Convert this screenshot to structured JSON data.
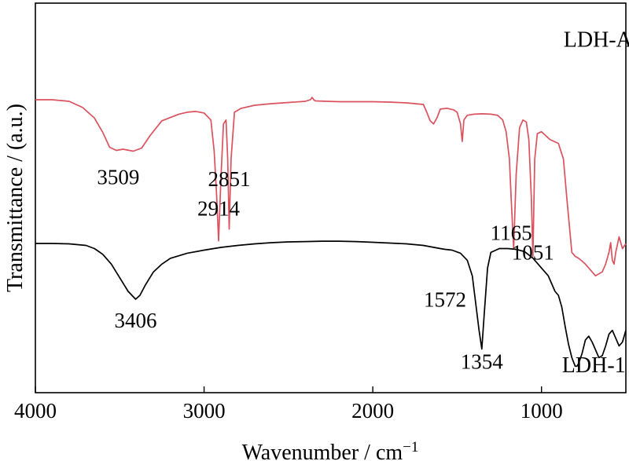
{
  "chart_data": {
    "type": "line",
    "xlabel": "Wavenumber / cm",
    "xlabel_superscript": "−1",
    "ylabel": "Transmittance / (a.u.)",
    "x_reversed": true,
    "xlim": [
      4000,
      500
    ],
    "ylim": [
      0,
      1
    ],
    "x_ticks": [
      {
        "value": 4000,
        "label": "4000"
      },
      {
        "value": 3000,
        "label": "3000"
      },
      {
        "value": 2000,
        "label": "2000"
      },
      {
        "value": 1000,
        "label": "1000"
      }
    ],
    "series": [
      {
        "name": "LDH-AS",
        "color": "#d9525e",
        "x": [
          4000,
          3900,
          3800,
          3720,
          3650,
          3600,
          3560,
          3520,
          3480,
          3420,
          3370,
          3320,
          3250,
          3150,
          3100,
          3050,
          3000,
          2960,
          2940,
          2925,
          2914,
          2900,
          2885,
          2870,
          2860,
          2851,
          2840,
          2820,
          2780,
          2700,
          2600,
          2500,
          2400,
          2370,
          2360,
          2350,
          2340,
          2200,
          2000,
          1900,
          1800,
          1700,
          1680,
          1660,
          1640,
          1620,
          1600,
          1560,
          1520,
          1500,
          1480,
          1470,
          1460,
          1440,
          1400,
          1350,
          1300,
          1260,
          1230,
          1210,
          1190,
          1180,
          1165,
          1150,
          1130,
          1110,
          1090,
          1075,
          1060,
          1051,
          1040,
          1025,
          1000,
          950,
          900,
          870,
          850,
          820,
          800,
          780,
          760,
          740,
          700,
          680,
          660,
          640,
          620,
          600,
          590,
          580,
          570,
          560,
          540,
          520,
          500
        ],
        "y": [
          0.752,
          0.752,
          0.748,
          0.732,
          0.705,
          0.668,
          0.63,
          0.622,
          0.625,
          0.62,
          0.628,
          0.66,
          0.698,
          0.715,
          0.72,
          0.722,
          0.718,
          0.7,
          0.62,
          0.5,
          0.39,
          0.55,
          0.69,
          0.7,
          0.6,
          0.42,
          0.6,
          0.72,
          0.73,
          0.738,
          0.742,
          0.745,
          0.748,
          0.752,
          0.758,
          0.752,
          0.749,
          0.747,
          0.747,
          0.746,
          0.744,
          0.74,
          0.72,
          0.698,
          0.69,
          0.705,
          0.728,
          0.73,
          0.726,
          0.72,
          0.69,
          0.645,
          0.7,
          0.712,
          0.715,
          0.716,
          0.715,
          0.712,
          0.7,
          0.67,
          0.6,
          0.5,
          0.37,
          0.56,
          0.68,
          0.7,
          0.695,
          0.65,
          0.5,
          0.35,
          0.6,
          0.665,
          0.67,
          0.65,
          0.64,
          0.6,
          0.5,
          0.36,
          0.35,
          0.345,
          0.338,
          0.33,
          0.31,
          0.3,
          0.305,
          0.31,
          0.33,
          0.36,
          0.385,
          0.34,
          0.33,
          0.36,
          0.4,
          0.37,
          0.382
        ]
      },
      {
        "name": "LDH-1",
        "color": "#000000",
        "x": [
          4000,
          3900,
          3800,
          3700,
          3650,
          3600,
          3550,
          3500,
          3450,
          3406,
          3380,
          3350,
          3300,
          3250,
          3200,
          3100,
          3000,
          2900,
          2800,
          2700,
          2600,
          2500,
          2400,
          2300,
          2200,
          2100,
          2000,
          1900,
          1800,
          1700,
          1650,
          1600,
          1572,
          1530,
          1480,
          1440,
          1410,
          1390,
          1370,
          1354,
          1340,
          1320,
          1300,
          1250,
          1200,
          1150,
          1100,
          1050,
          1000,
          960,
          940,
          920,
          900,
          880,
          860,
          840,
          820,
          800,
          790,
          780,
          760,
          740,
          720,
          700,
          680,
          660,
          640,
          620,
          600,
          580,
          560,
          540,
          520,
          500
        ],
        "y": [
          0.383,
          0.383,
          0.382,
          0.378,
          0.37,
          0.355,
          0.33,
          0.295,
          0.26,
          0.24,
          0.25,
          0.275,
          0.31,
          0.33,
          0.345,
          0.358,
          0.366,
          0.373,
          0.378,
          0.382,
          0.385,
          0.387,
          0.388,
          0.389,
          0.389,
          0.388,
          0.386,
          0.384,
          0.382,
          0.378,
          0.374,
          0.37,
          0.368,
          0.366,
          0.358,
          0.34,
          0.3,
          0.23,
          0.16,
          0.112,
          0.2,
          0.32,
          0.36,
          0.37,
          0.37,
          0.368,
          0.362,
          0.345,
          0.32,
          0.3,
          0.28,
          0.26,
          0.25,
          0.22,
          0.17,
          0.125,
          0.09,
          0.068,
          0.068,
          0.075,
          0.1,
          0.135,
          0.145,
          0.13,
          0.11,
          0.09,
          0.095,
          0.12,
          0.15,
          0.16,
          0.14,
          0.12,
          0.13,
          0.16
        ]
      }
    ],
    "series_labels": [
      {
        "text": "LDH-AS",
        "x": 630,
        "y": 0.888
      },
      {
        "text": "LDH-1",
        "x": 690,
        "y": 0.052
      }
    ],
    "annotations": [
      {
        "text": "3509",
        "x": 3509,
        "y": 0.535
      },
      {
        "text": "2914",
        "x": 2914,
        "y": 0.455
      },
      {
        "text": "2851",
        "x": 2851,
        "y": 0.53
      },
      {
        "text": "1165",
        "x": 1180,
        "y": 0.392
      },
      {
        "text": "1051",
        "x": 1051,
        "y": 0.342
      },
      {
        "text": "3406",
        "x": 3406,
        "y": 0.167
      },
      {
        "text": "1572",
        "x": 1572,
        "y": 0.221
      },
      {
        "text": "1354",
        "x": 1354,
        "y": 0.061
      }
    ],
    "grid": false,
    "legend": "none"
  }
}
